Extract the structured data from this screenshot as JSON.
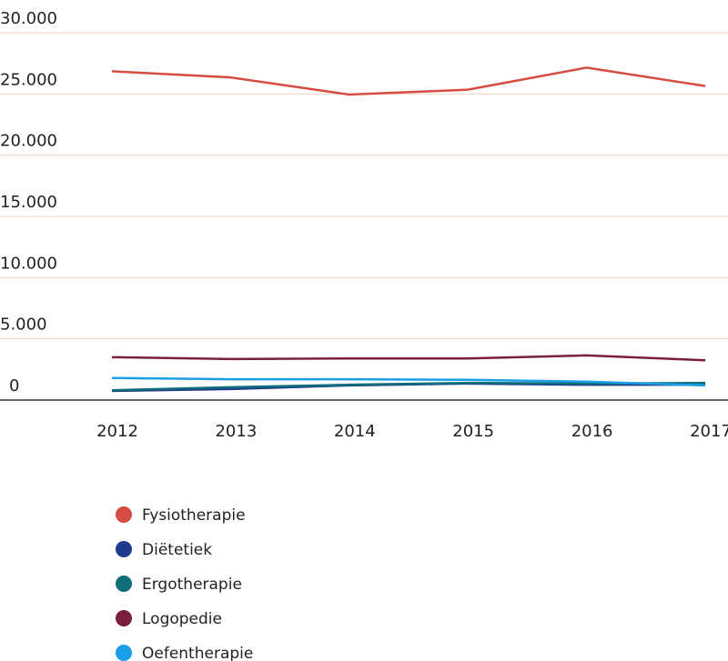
{
  "chart_data": {
    "type": "line",
    "categories": [
      "2012",
      "2013",
      "2014",
      "2015",
      "2016",
      "2017"
    ],
    "series": [
      {
        "name": "Fysiotherapie",
        "color": "#d64c40",
        "values": [
          26850,
          26350,
          24950,
          25350,
          27150,
          25650
        ]
      },
      {
        "name": "Diëtetiek",
        "color": "#1f3a8a",
        "values": [
          750,
          900,
          1200,
          1350,
          1250,
          1250
        ]
      },
      {
        "name": "Ergotherapie",
        "color": "#0e6e7a",
        "values": [
          800,
          1050,
          1250,
          1400,
          1350,
          1400
        ]
      },
      {
        "name": "Logopedie",
        "color": "#7a1f3d",
        "values": [
          3500,
          3350,
          3400,
          3400,
          3650,
          3250
        ]
      },
      {
        "name": "Oefentherapie",
        "color": "#1a9ee8",
        "values": [
          1800,
          1700,
          1700,
          1650,
          1500,
          1200
        ]
      }
    ],
    "ylim": [
      0,
      30000
    ],
    "yticks": [
      0,
      {
        "value": 5000,
        "label": "5.000"
      },
      {
        "value": 10000,
        "label": "10.000"
      },
      {
        "value": 15000,
        "label": "15.000"
      },
      {
        "value": 20000,
        "label": "20.000"
      },
      {
        "value": 25000,
        "label": "25.000"
      },
      {
        "value": 30000,
        "label": "30.000"
      }
    ],
    "grid": true
  }
}
